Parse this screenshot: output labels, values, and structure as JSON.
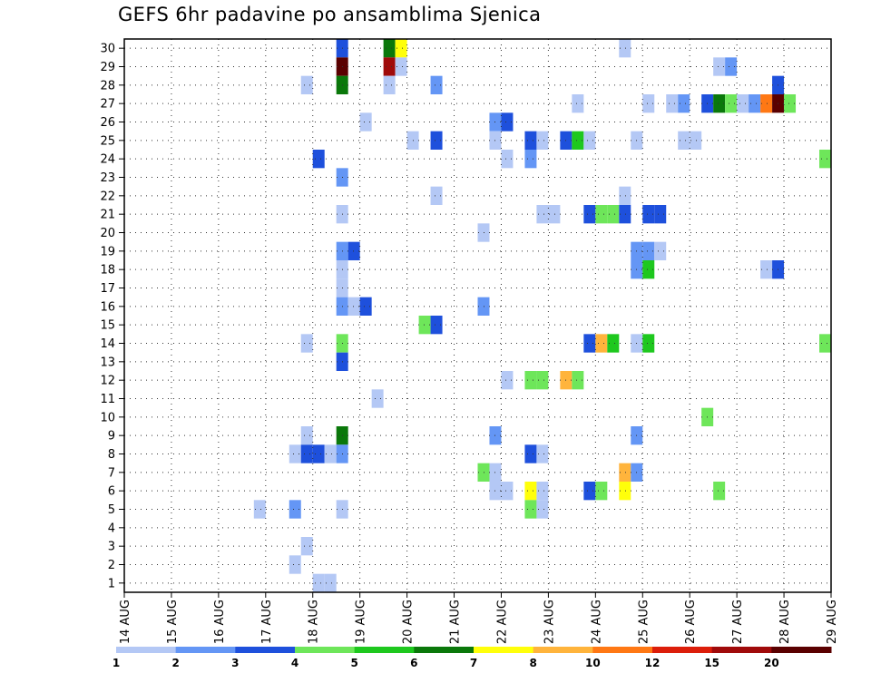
{
  "title": "GEFS 6hr padavine po ansamblima Sjenica",
  "chart_data": {
    "type": "heatmap",
    "title": "GEFS 6hr padavine po ansamblima Sjenica",
    "x_ticks": [
      "14 AUG",
      "15 AUG",
      "16 AUG",
      "17 AUG",
      "18 AUG",
      "19 AUG",
      "20 AUG",
      "21 AUG",
      "22 AUG",
      "23 AUG",
      "24 AUG",
      "25 AUG",
      "26 AUG",
      "27 AUG",
      "28 AUG",
      "29 AUG"
    ],
    "y_ticks": [
      1,
      2,
      3,
      4,
      5,
      6,
      7,
      8,
      9,
      10,
      11,
      12,
      13,
      14,
      15,
      16,
      17,
      18,
      19,
      20,
      21,
      22,
      23,
      24,
      25,
      26,
      27,
      28,
      29,
      30
    ],
    "x_range_days": [
      14,
      29
    ],
    "y_range": [
      0.5,
      30.5
    ],
    "time_step_hours": 6,
    "grid": true,
    "colorbar": {
      "labels": [
        "1",
        "2",
        "3",
        "4",
        "5",
        "6",
        "7",
        "8",
        "10",
        "12",
        "15",
        "20"
      ],
      "colors": [
        "#b4c8f5",
        "#6496f5",
        "#1e50dc",
        "#6ee65a",
        "#1ec81e",
        "#0a780a",
        "#ffff0a",
        "#ffb43c",
        "#ff7814",
        "#dc1e0a",
        "#a00a0a",
        "#5a0000"
      ]
    },
    "cells": [
      {
        "member": 30,
        "day": 18.5,
        "bin": 3
      },
      {
        "member": 30,
        "day": 19.5,
        "bin": 6
      },
      {
        "member": 30,
        "day": 19.75,
        "bin": 7
      },
      {
        "member": 30,
        "day": 24.5,
        "bin": 1
      },
      {
        "member": 29,
        "day": 18.5,
        "bin": 12
      },
      {
        "member": 29,
        "day": 19.5,
        "bin": 11
      },
      {
        "member": 29,
        "day": 19.75,
        "bin": 1
      },
      {
        "member": 29,
        "day": 26.5,
        "bin": 1
      },
      {
        "member": 29,
        "day": 26.75,
        "bin": 2
      },
      {
        "member": 28,
        "day": 17.75,
        "bin": 1
      },
      {
        "member": 28,
        "day": 18.5,
        "bin": 6
      },
      {
        "member": 28,
        "day": 19.5,
        "bin": 1
      },
      {
        "member": 28,
        "day": 20.5,
        "bin": 2
      },
      {
        "member": 28,
        "day": 27.75,
        "bin": 3
      },
      {
        "member": 27,
        "day": 23.5,
        "bin": 1
      },
      {
        "member": 27,
        "day": 25,
        "bin": 1
      },
      {
        "member": 27,
        "day": 25.5,
        "bin": 1
      },
      {
        "member": 27,
        "day": 25.75,
        "bin": 2
      },
      {
        "member": 27,
        "day": 26.25,
        "bin": 3
      },
      {
        "member": 27,
        "day": 26.5,
        "bin": 6
      },
      {
        "member": 27,
        "day": 26.75,
        "bin": 4
      },
      {
        "member": 27,
        "day": 27,
        "bin": 1
      },
      {
        "member": 27,
        "day": 27.25,
        "bin": 2
      },
      {
        "member": 27,
        "day": 27.5,
        "bin": 9
      },
      {
        "member": 27,
        "day": 27.75,
        "bin": 12
      },
      {
        "member": 27,
        "day": 28,
        "bin": 4
      },
      {
        "member": 26,
        "day": 19,
        "bin": 1
      },
      {
        "member": 26,
        "day": 21.75,
        "bin": 2
      },
      {
        "member": 26,
        "day": 22,
        "bin": 3
      },
      {
        "member": 25,
        "day": 20,
        "bin": 1
      },
      {
        "member": 25,
        "day": 20.5,
        "bin": 3
      },
      {
        "member": 25,
        "day": 21.75,
        "bin": 1
      },
      {
        "member": 25,
        "day": 22.5,
        "bin": 3
      },
      {
        "member": 25,
        "day": 22.75,
        "bin": 1
      },
      {
        "member": 25,
        "day": 23.25,
        "bin": 3
      },
      {
        "member": 25,
        "day": 23.5,
        "bin": 5
      },
      {
        "member": 25,
        "day": 23.75,
        "bin": 1
      },
      {
        "member": 25,
        "day": 24.75,
        "bin": 1
      },
      {
        "member": 25,
        "day": 25.75,
        "bin": 1
      },
      {
        "member": 25,
        "day": 26,
        "bin": 1
      },
      {
        "member": 24,
        "day": 18,
        "bin": 3
      },
      {
        "member": 24,
        "day": 22,
        "bin": 1
      },
      {
        "member": 24,
        "day": 22.5,
        "bin": 2
      },
      {
        "member": 24,
        "day": 28.75,
        "bin": 4
      },
      {
        "member": 23,
        "day": 18.5,
        "bin": 2
      },
      {
        "member": 22,
        "day": 20.5,
        "bin": 1
      },
      {
        "member": 22,
        "day": 24.5,
        "bin": 1
      },
      {
        "member": 21,
        "day": 18.5,
        "bin": 1
      },
      {
        "member": 21,
        "day": 22.75,
        "bin": 1
      },
      {
        "member": 21,
        "day": 23,
        "bin": 1
      },
      {
        "member": 21,
        "day": 23.75,
        "bin": 3
      },
      {
        "member": 21,
        "day": 24,
        "bin": 4
      },
      {
        "member": 21,
        "day": 24.25,
        "bin": 4
      },
      {
        "member": 21,
        "day": 24.5,
        "bin": 3
      },
      {
        "member": 21,
        "day": 25,
        "bin": 3
      },
      {
        "member": 21,
        "day": 25.25,
        "bin": 3
      },
      {
        "member": 20,
        "day": 21.5,
        "bin": 1
      },
      {
        "member": 19,
        "day": 18.5,
        "bin": 2
      },
      {
        "member": 19,
        "day": 18.75,
        "bin": 3
      },
      {
        "member": 19,
        "day": 24.75,
        "bin": 2
      },
      {
        "member": 19,
        "day": 25,
        "bin": 2
      },
      {
        "member": 19,
        "day": 25.25,
        "bin": 1
      },
      {
        "member": 18,
        "day": 18.5,
        "bin": 1
      },
      {
        "member": 18,
        "day": 24.75,
        "bin": 2
      },
      {
        "member": 18,
        "day": 25,
        "bin": 5
      },
      {
        "member": 18,
        "day": 27.5,
        "bin": 1
      },
      {
        "member": 18,
        "day": 27.75,
        "bin": 3
      },
      {
        "member": 17,
        "day": 18.5,
        "bin": 1
      },
      {
        "member": 16,
        "day": 18.5,
        "bin": 2
      },
      {
        "member": 16,
        "day": 18.75,
        "bin": 1
      },
      {
        "member": 16,
        "day": 19,
        "bin": 3
      },
      {
        "member": 16,
        "day": 21.5,
        "bin": 2
      },
      {
        "member": 15,
        "day": 20.25,
        "bin": 4
      },
      {
        "member": 15,
        "day": 20.5,
        "bin": 3
      },
      {
        "member": 14,
        "day": 17.75,
        "bin": 1
      },
      {
        "member": 14,
        "day": 18.5,
        "bin": 4
      },
      {
        "member": 14,
        "day": 23.75,
        "bin": 3
      },
      {
        "member": 14,
        "day": 24,
        "bin": 8
      },
      {
        "member": 14,
        "day": 24.25,
        "bin": 5
      },
      {
        "member": 14,
        "day": 24.75,
        "bin": 1
      },
      {
        "member": 14,
        "day": 25,
        "bin": 5
      },
      {
        "member": 14,
        "day": 28.75,
        "bin": 4
      },
      {
        "member": 13,
        "day": 18.5,
        "bin": 3
      },
      {
        "member": 12,
        "day": 22,
        "bin": 1
      },
      {
        "member": 12,
        "day": 22.5,
        "bin": 4
      },
      {
        "member": 12,
        "day": 22.75,
        "bin": 4
      },
      {
        "member": 12,
        "day": 23.25,
        "bin": 8
      },
      {
        "member": 12,
        "day": 23.5,
        "bin": 4
      },
      {
        "member": 11,
        "day": 19.25,
        "bin": 1
      },
      {
        "member": 10,
        "day": 26.25,
        "bin": 4
      },
      {
        "member": 9,
        "day": 17.75,
        "bin": 1
      },
      {
        "member": 9,
        "day": 18.5,
        "bin": 6
      },
      {
        "member": 9,
        "day": 21.75,
        "bin": 2
      },
      {
        "member": 9,
        "day": 24.75,
        "bin": 2
      },
      {
        "member": 8,
        "day": 17.5,
        "bin": 1
      },
      {
        "member": 8,
        "day": 17.75,
        "bin": 3
      },
      {
        "member": 8,
        "day": 18,
        "bin": 3
      },
      {
        "member": 8,
        "day": 18.25,
        "bin": 1
      },
      {
        "member": 8,
        "day": 18.5,
        "bin": 2
      },
      {
        "member": 8,
        "day": 22.5,
        "bin": 3
      },
      {
        "member": 8,
        "day": 22.75,
        "bin": 1
      },
      {
        "member": 7,
        "day": 21.5,
        "bin": 4
      },
      {
        "member": 7,
        "day": 21.75,
        "bin": 1
      },
      {
        "member": 7,
        "day": 24.5,
        "bin": 8
      },
      {
        "member": 7,
        "day": 24.75,
        "bin": 2
      },
      {
        "member": 6,
        "day": 21.75,
        "bin": 1
      },
      {
        "member": 6,
        "day": 22,
        "bin": 1
      },
      {
        "member": 6,
        "day": 22.5,
        "bin": 7
      },
      {
        "member": 6,
        "day": 22.75,
        "bin": 1
      },
      {
        "member": 6,
        "day": 23.75,
        "bin": 3
      },
      {
        "member": 6,
        "day": 24,
        "bin": 4
      },
      {
        "member": 6,
        "day": 24.5,
        "bin": 7
      },
      {
        "member": 6,
        "day": 26.5,
        "bin": 4
      },
      {
        "member": 5,
        "day": 16.75,
        "bin": 1
      },
      {
        "member": 5,
        "day": 17.5,
        "bin": 2
      },
      {
        "member": 5,
        "day": 18.5,
        "bin": 1
      },
      {
        "member": 5,
        "day": 22.5,
        "bin": 4
      },
      {
        "member": 5,
        "day": 22.75,
        "bin": 1
      },
      {
        "member": 3,
        "day": 17.75,
        "bin": 1
      },
      {
        "member": 2,
        "day": 17.5,
        "bin": 1
      },
      {
        "member": 1,
        "day": 18,
        "bin": 1
      },
      {
        "member": 1,
        "day": 18.25,
        "bin": 1
      }
    ]
  }
}
